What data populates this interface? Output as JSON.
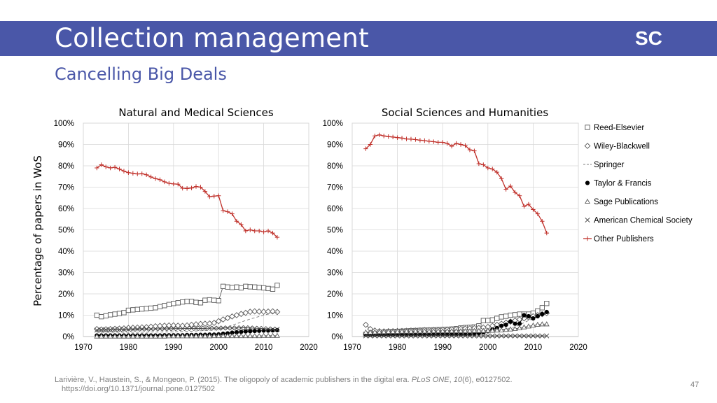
{
  "slide": {
    "title": "Collection management",
    "subtitle": "Cancelling Big Deals",
    "logo": "SC",
    "y_axis_label": "Percentage of papers in WoS",
    "citation": {
      "part1": "Larivière, V., Haustein, S., & Mongeon, P. (2015). The oligopoly of academic publishers in the digital era. ",
      "journal": "PLoS ONE",
      "part2": ", ",
      "volume": "10",
      "part3": "(6), e0127502.",
      "url": "https://doi.org/10.1371/journal.pone.0127502"
    },
    "page_number": "47"
  },
  "legend": [
    "Reed-Elsevier",
    "Wiley-Blackwell",
    "Springer",
    "Taylor & Francis",
    "Sage Publications",
    "American Chemical Society",
    "Other Publishers"
  ],
  "chart_data": [
    {
      "type": "line",
      "title": "Natural and Medical Sciences",
      "xlim": [
        1970,
        2020
      ],
      "ylim": [
        0,
        100
      ],
      "x_ticks": [
        "1970",
        "1980",
        "1990",
        "2000",
        "2010",
        "2020"
      ],
      "y_ticks": [
        "0%",
        "10%",
        "20%",
        "30%",
        "40%",
        "50%",
        "60%",
        "70%",
        "80%",
        "90%",
        "100%"
      ],
      "grid": true,
      "x": [
        1973,
        1974,
        1975,
        1976,
        1977,
        1978,
        1979,
        1980,
        1981,
        1982,
        1983,
        1984,
        1985,
        1986,
        1987,
        1988,
        1989,
        1990,
        1991,
        1992,
        1993,
        1994,
        1995,
        1996,
        1997,
        1998,
        1999,
        2000,
        2001,
        2002,
        2003,
        2004,
        2005,
        2006,
        2007,
        2008,
        2009,
        2010,
        2011,
        2012,
        2013
      ],
      "series": [
        {
          "name": "Reed-Elsevier",
          "color": "#595959",
          "values": [
            10,
            9.3,
            9.7,
            10.2,
            10.5,
            10.8,
            11.2,
            12.3,
            12.5,
            12.7,
            12.9,
            13.1,
            13.3,
            13.5,
            14,
            14.5,
            15,
            15.5,
            15.8,
            16.2,
            16.5,
            16.5,
            16,
            15.8,
            17,
            17.2,
            17,
            16.8,
            23.5,
            23.2,
            23,
            23.2,
            22.8,
            23.5,
            23.3,
            23.2,
            23,
            22.8,
            22.5,
            22.2,
            24
          ]
        },
        {
          "name": "Wiley-Blackwell",
          "color": "#595959",
          "values": [
            3.5,
            3.3,
            3.4,
            3.5,
            3.6,
            3.7,
            3.8,
            4,
            4.1,
            4.2,
            4.3,
            4.4,
            4.6,
            4.8,
            5,
            5.1,
            5.2,
            5.2,
            5.1,
            5,
            5.2,
            5.5,
            5.7,
            5.9,
            6,
            6.1,
            6.4,
            7.2,
            8,
            8.7,
            9.4,
            10,
            10.6,
            11.1,
            11.6,
            11.8,
            11.7,
            11.6,
            11.7,
            11.8,
            11.5
          ]
        },
        {
          "name": "Springer",
          "color": "#7f7f7f",
          "values": [
            2,
            2,
            2,
            2,
            2,
            2,
            2,
            2,
            2,
            2,
            2,
            2,
            2.1,
            2.1,
            2.1,
            2.2,
            2.2,
            2.2,
            2.3,
            2.3,
            2.4,
            2.5,
            2.6,
            2.7,
            2.8,
            2.9,
            3,
            3.4,
            3.8,
            4.5,
            5.3,
            6,
            6.8,
            7.5,
            8.2,
            8.8,
            9.4,
            10,
            10.5,
            11,
            11.5
          ]
        },
        {
          "name": "Taylor & Francis",
          "color": "#000000",
          "values": [
            0.5,
            0.5,
            0.5,
            0.5,
            0.5,
            0.5,
            0.5,
            0.5,
            0.5,
            0.5,
            0.5,
            0.5,
            0.5,
            0.5,
            0.5,
            0.6,
            0.6,
            0.6,
            0.6,
            0.6,
            0.7,
            0.7,
            0.7,
            0.8,
            0.8,
            0.9,
            0.9,
            1,
            1.3,
            1.5,
            1.8,
            2,
            2.2,
            2.4,
            2.5,
            2.6,
            2.7,
            2.8,
            2.8,
            2.9,
            3
          ]
        },
        {
          "name": "Sage Publications",
          "color": "#595959",
          "values": [
            0.1,
            0.1,
            0.1,
            0.1,
            0.1,
            0.1,
            0.1,
            0.1,
            0.1,
            0.1,
            0.1,
            0.1,
            0.1,
            0.1,
            0.1,
            0.1,
            0.2,
            0.2,
            0.2,
            0.2,
            0.2,
            0.2,
            0.2,
            0.2,
            0.2,
            0.2,
            0.3,
            0.3,
            0.3,
            0.3,
            0.3,
            0.3,
            0.3,
            0.3,
            0.3,
            0.3,
            0.3,
            0.4,
            0.4,
            0.4,
            0.4
          ]
        },
        {
          "name": "American Chemical Society",
          "color": "#404040",
          "values": [
            3,
            3.1,
            3.2,
            3.2,
            3.3,
            3.3,
            3.4,
            3.4,
            3.4,
            3.5,
            3.5,
            3.5,
            3.5,
            3.6,
            3.6,
            3.6,
            3.6,
            3.7,
            3.7,
            3.7,
            3.8,
            3.8,
            3.8,
            3.8,
            3.8,
            3.9,
            3.9,
            3.9,
            4,
            4,
            4,
            4,
            4.1,
            4.1,
            4,
            3.9,
            3.8,
            3.7,
            3.6,
            3.5,
            3.4
          ]
        },
        {
          "name": "Other Publishers",
          "color": "#c0302a",
          "values": [
            79,
            80.5,
            79.5,
            79,
            79.3,
            78.5,
            77.5,
            76.8,
            76.5,
            76.2,
            76.3,
            75.8,
            74.8,
            74,
            73.5,
            72.5,
            71.8,
            71.5,
            71.4,
            69.5,
            69.4,
            69.6,
            70.3,
            70,
            68,
            65.5,
            65.8,
            66,
            59,
            58.5,
            57.5,
            54,
            52.5,
            49.5,
            50,
            49.5,
            49.5,
            49,
            49.5,
            48.5,
            46.5
          ]
        }
      ]
    },
    {
      "type": "line",
      "title": "Social Sciences and Humanities",
      "xlim": [
        1970,
        2020
      ],
      "ylim": [
        0,
        100
      ],
      "x_ticks": [
        "1970",
        "1980",
        "1990",
        "2000",
        "2010",
        "2020"
      ],
      "y_ticks": [
        "0%",
        "10%",
        "20%",
        "30%",
        "40%",
        "50%",
        "60%",
        "70%",
        "80%",
        "90%",
        "100%"
      ],
      "grid": true,
      "x": [
        1973,
        1974,
        1975,
        1976,
        1977,
        1978,
        1979,
        1980,
        1981,
        1982,
        1983,
        1984,
        1985,
        1986,
        1987,
        1988,
        1989,
        1990,
        1991,
        1992,
        1993,
        1994,
        1995,
        1996,
        1997,
        1998,
        1999,
        2000,
        2001,
        2002,
        2003,
        2004,
        2005,
        2006,
        2007,
        2008,
        2009,
        2010,
        2011,
        2012,
        2013
      ],
      "series": [
        {
          "name": "Reed-Elsevier",
          "color": "#595959",
          "values": [
            1,
            1.2,
            1.5,
            1.8,
            2,
            2.2,
            2.3,
            2.4,
            2.5,
            2.6,
            2.7,
            2.8,
            2.9,
            3,
            3,
            3.1,
            3.2,
            3.3,
            3.4,
            3.5,
            3.7,
            4,
            4.2,
            4.3,
            4.5,
            5,
            7.5,
            7.5,
            7.8,
            8.5,
            9.2,
            9.5,
            10,
            10.2,
            10.5,
            10.5,
            10.5,
            11,
            12,
            13.5,
            15.5
          ]
        },
        {
          "name": "Wiley-Blackwell",
          "color": "#595959",
          "values": [
            5.5,
            3.5,
            2.8,
            2.5,
            2.4,
            2.5,
            2.5,
            2.6,
            2.6,
            2.7,
            2.8,
            2.8,
            2.9,
            3,
            3,
            3.1,
            3.1,
            3.2,
            3.3,
            3.4,
            3.5,
            3.6,
            3.7,
            3.8,
            3.9,
            4,
            4.2,
            4.5,
            5,
            5.5,
            6,
            6.5,
            7,
            7.5,
            8,
            8.5,
            9,
            9.5,
            10,
            10.5,
            11
          ]
        },
        {
          "name": "Springer",
          "color": "#7f7f7f",
          "values": [
            0.5,
            0.5,
            0.5,
            0.5,
            0.5,
            0.5,
            0.6,
            0.6,
            0.6,
            0.7,
            0.7,
            0.7,
            0.8,
            0.8,
            0.8,
            0.9,
            0.9,
            1,
            1,
            1,
            1.1,
            1.1,
            1.2,
            1.2,
            1.3,
            1.4,
            1.6,
            2,
            2.4,
            2.8,
            3.2,
            3.6,
            4,
            4.5,
            5.5,
            6.5,
            7.5,
            8.5,
            9.5,
            10.5,
            12
          ]
        },
        {
          "name": "Taylor & Francis",
          "color": "#000000",
          "values": [
            1,
            0.8,
            0.8,
            0.8,
            0.8,
            0.8,
            0.8,
            0.8,
            0.8,
            0.8,
            0.8,
            0.8,
            0.9,
            0.9,
            0.9,
            0.9,
            1,
            1,
            1,
            1,
            1,
            1,
            1,
            1,
            1.2,
            1.5,
            2,
            2.5,
            3.3,
            4,
            5,
            5.5,
            7,
            6,
            6,
            10,
            9.5,
            8.5,
            9.5,
            10.5,
            11.5
          ]
        },
        {
          "name": "Sage Publications",
          "color": "#595959",
          "values": [
            2,
            2,
            2.1,
            2.2,
            2.2,
            2.3,
            2.3,
            2.3,
            2.4,
            2.4,
            2.4,
            2.5,
            2.5,
            2.5,
            2.5,
            2.6,
            2.6,
            2.6,
            2.6,
            2.6,
            2.6,
            2.6,
            2.6,
            2.6,
            2.7,
            2.7,
            2.7,
            2.8,
            2.8,
            2.9,
            3,
            3.2,
            3.4,
            3.6,
            4,
            4.4,
            4.8,
            5.2,
            5.6,
            5.8,
            5.8
          ]
        },
        {
          "name": "American Chemical Society",
          "color": "#404040",
          "values": [
            0.3,
            0.3,
            0.3,
            0.3,
            0.3,
            0.3,
            0.3,
            0.3,
            0.3,
            0.3,
            0.3,
            0.3,
            0.3,
            0.3,
            0.3,
            0.3,
            0.3,
            0.3,
            0.3,
            0.3,
            0.3,
            0.3,
            0.3,
            0.3,
            0.3,
            0.3,
            0.3,
            0.3,
            0.3,
            0.3,
            0.3,
            0.3,
            0.3,
            0.3,
            0.3,
            0.3,
            0.3,
            0.3,
            0.3,
            0.3,
            0.3
          ]
        },
        {
          "name": "Other Publishers",
          "color": "#c0302a",
          "values": [
            88,
            90,
            94,
            94.5,
            94,
            93.7,
            93.5,
            93.2,
            93,
            92.6,
            92.5,
            92.3,
            92,
            91.8,
            91.5,
            91.3,
            91,
            91,
            90.5,
            89.2,
            90.5,
            90,
            89.5,
            87.5,
            87,
            81,
            80.5,
            79,
            78.5,
            77,
            74,
            69,
            70.5,
            67.5,
            66,
            61,
            62,
            59.5,
            57.5,
            54,
            48.5
          ]
        }
      ]
    }
  ]
}
